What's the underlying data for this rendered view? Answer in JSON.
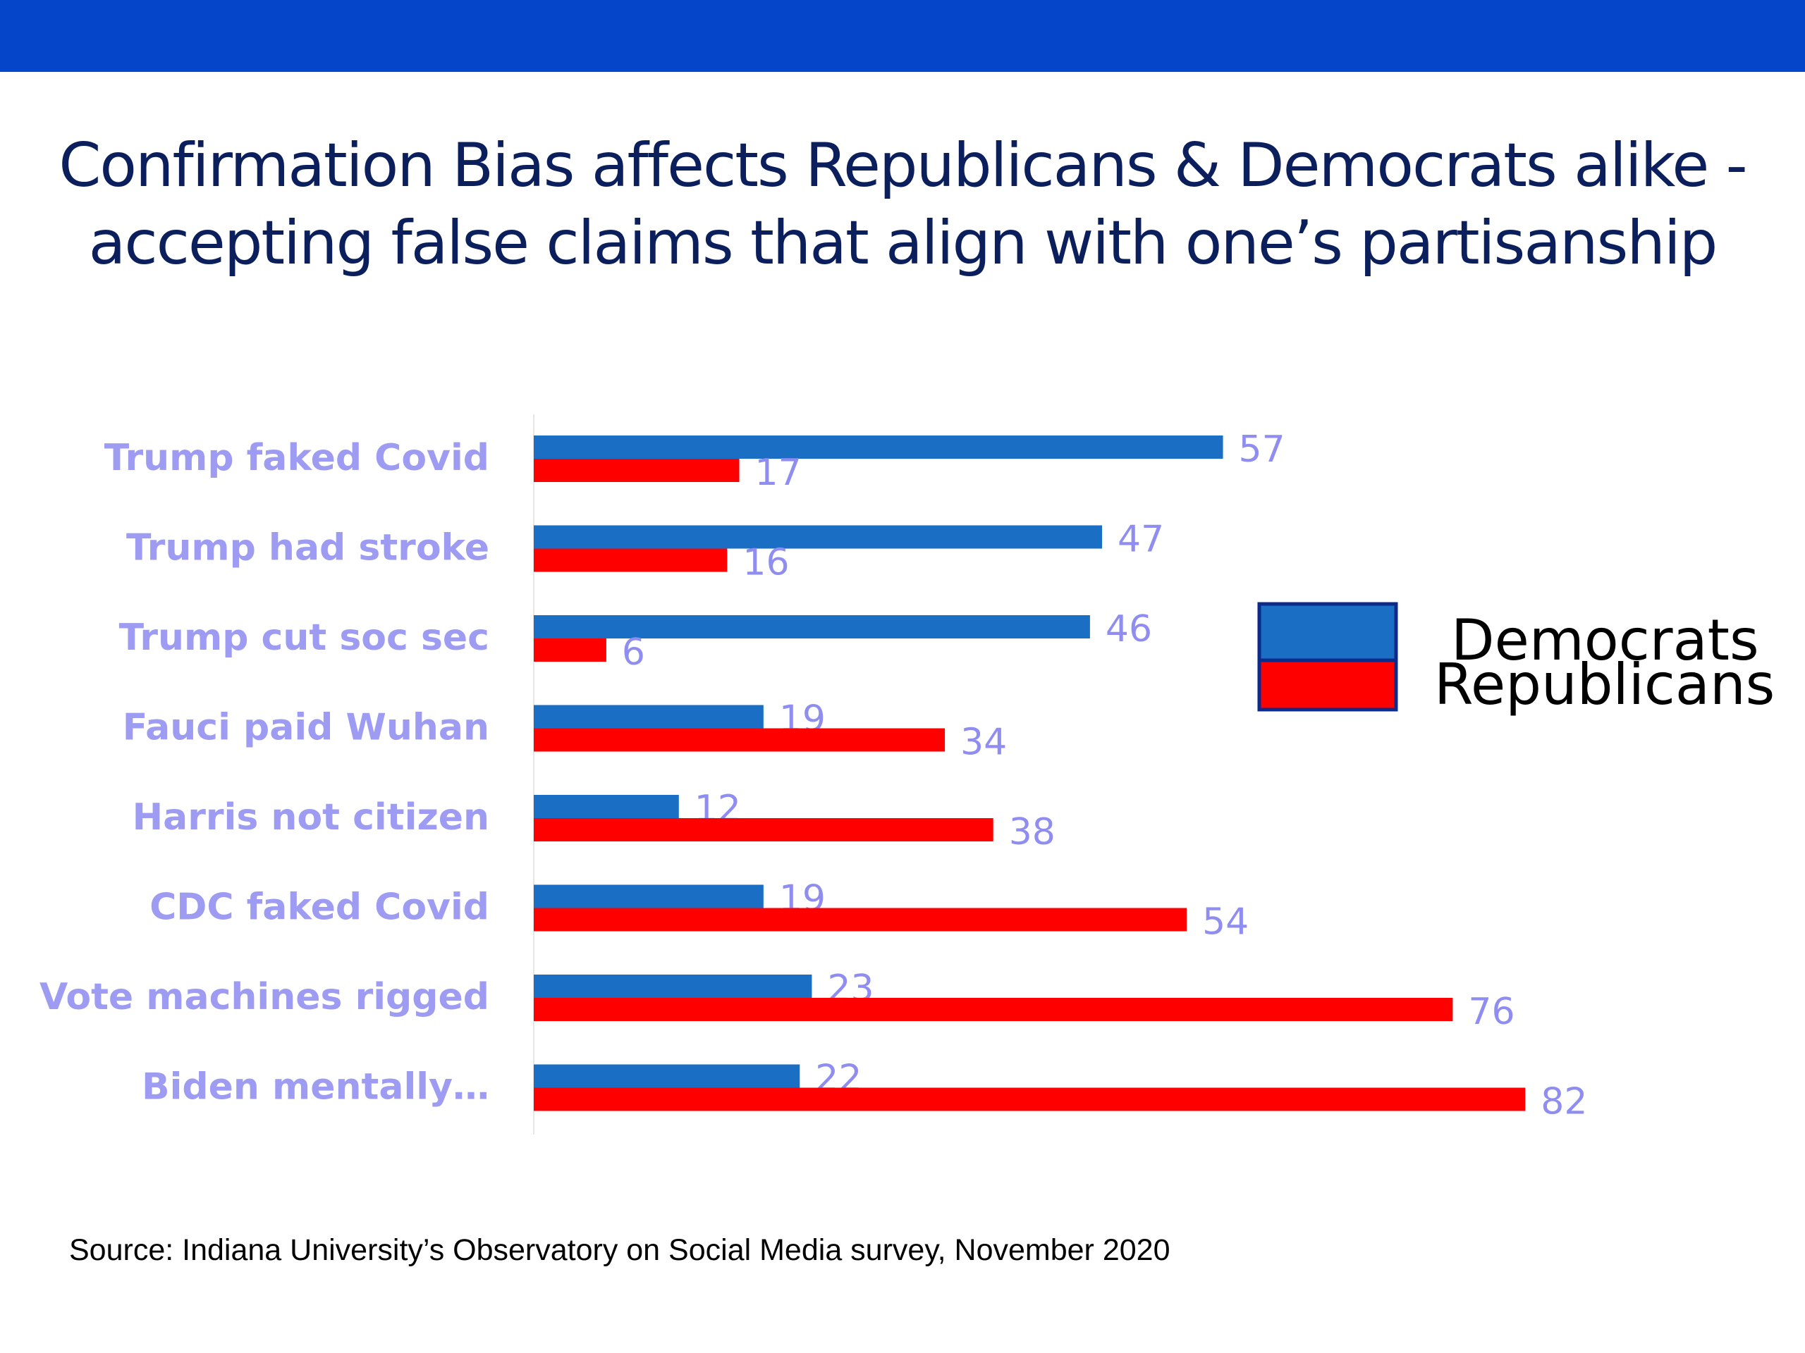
{
  "title": {
    "line1": "Confirmation Bias affects Republicans & Democrats alike -",
    "line2": "accepting false claims that align with one’s partisanship"
  },
  "source": "Source: Indiana University’s Observatory on Social Media survey, November 2020",
  "colors": {
    "band": "#0545c9",
    "democrats": "#1a6fc4",
    "republicans": "#ff0000",
    "labels": "#9d9cf2"
  },
  "chart_data": {
    "type": "bar",
    "orientation": "horizontal",
    "categories": [
      "Trump faked Covid",
      "Trump had stroke",
      "Trump cut soc sec",
      "Fauci paid Wuhan",
      "Harris not citizen",
      "CDC faked Covid",
      "Vote machines rigged",
      "Biden mentally…"
    ],
    "series": [
      {
        "name": "Democrats",
        "values": [
          57,
          47,
          46,
          19,
          12,
          19,
          23,
          22
        ]
      },
      {
        "name": "Republicans",
        "values": [
          17,
          16,
          6,
          34,
          38,
          54,
          76,
          82
        ]
      }
    ],
    "xlim": [
      0,
      100
    ],
    "grid": false,
    "legend_position": "right"
  }
}
